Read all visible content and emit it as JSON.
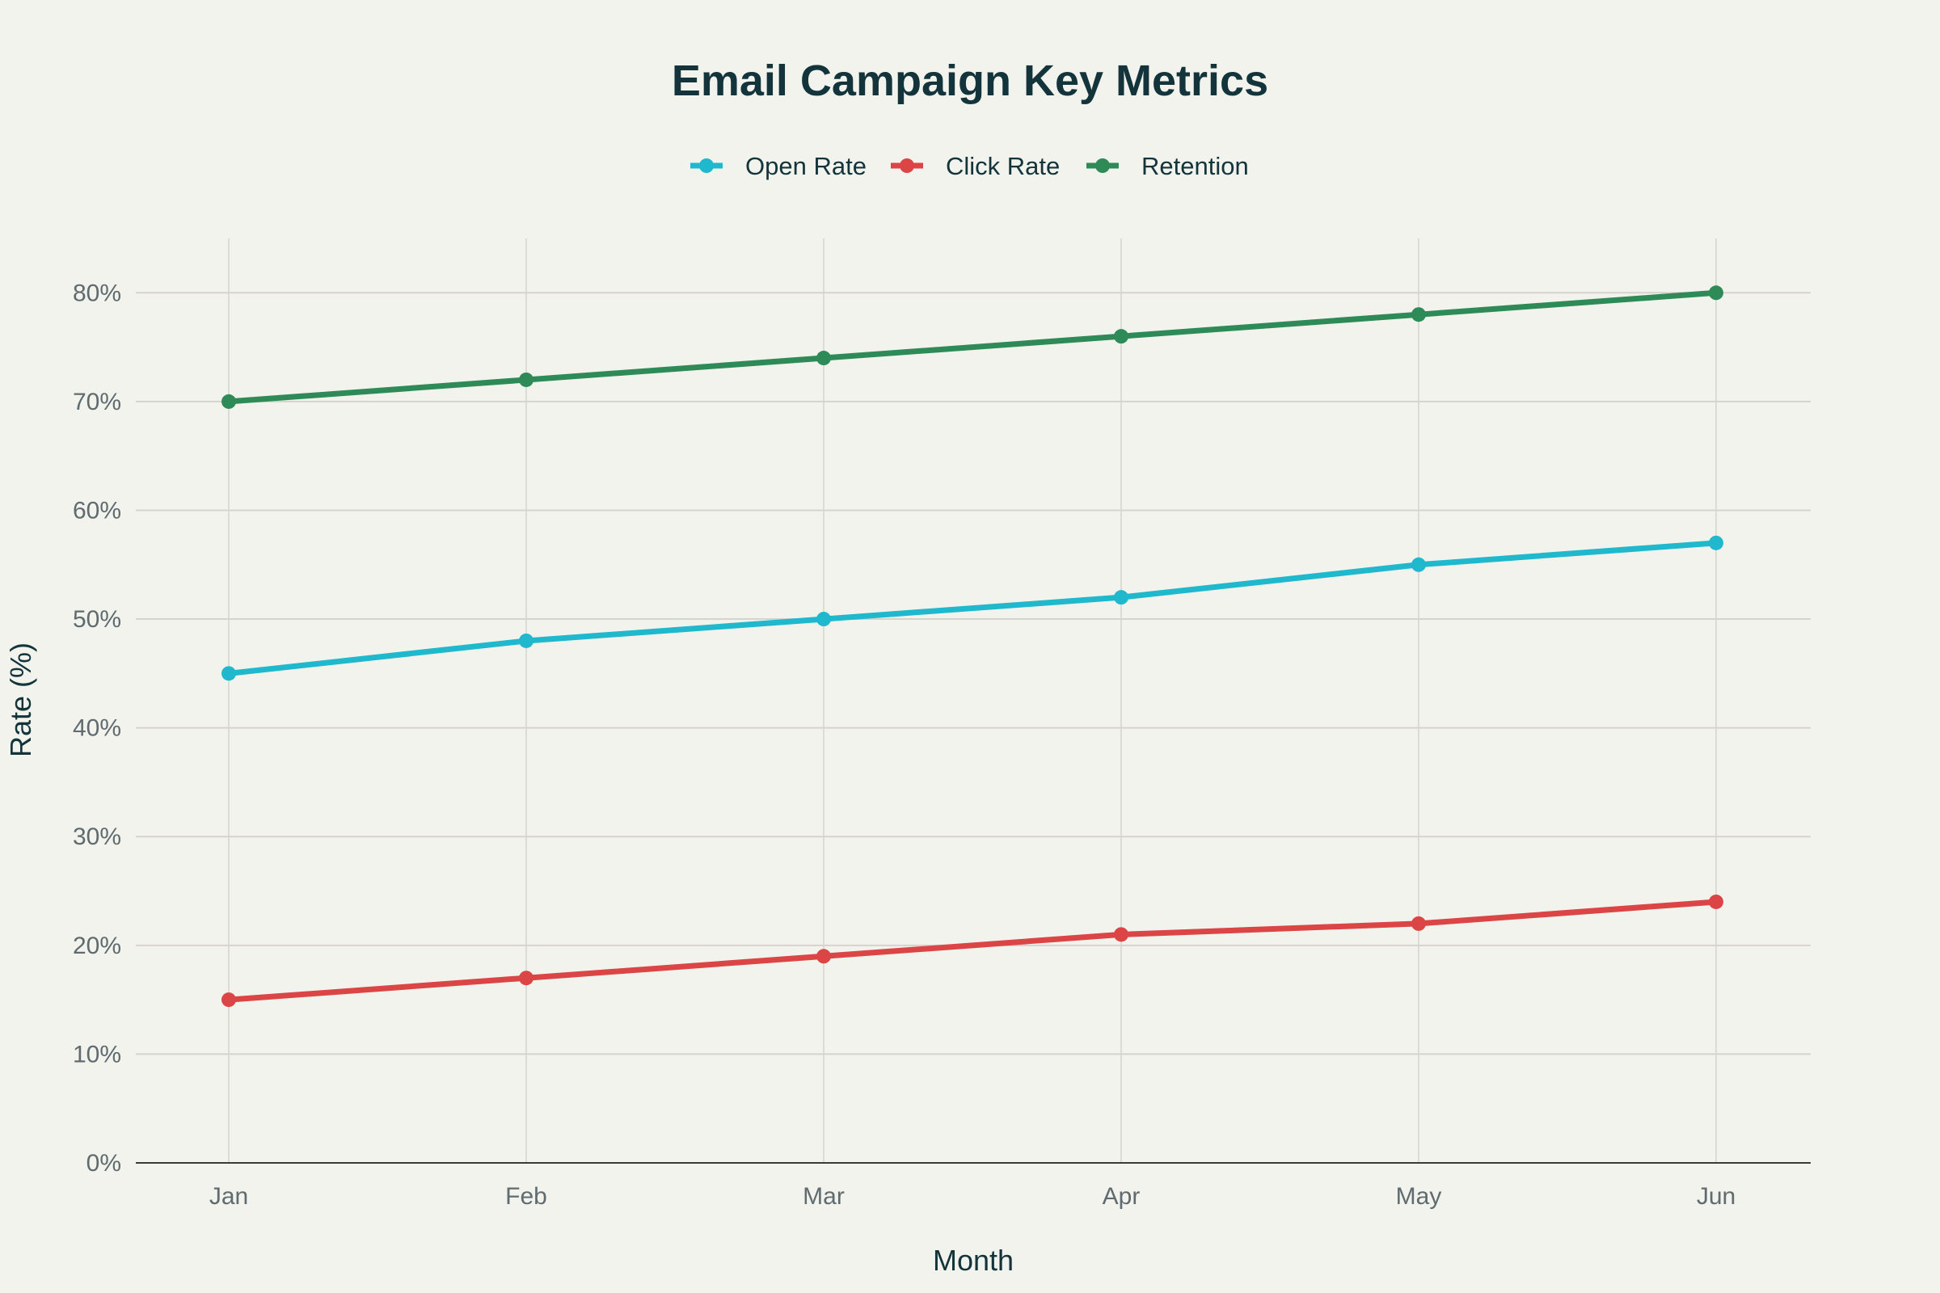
{
  "chart_data": {
    "type": "line",
    "title": "Email Campaign Key Metrics",
    "xlabel": "Month",
    "ylabel": "Rate (%)",
    "categories": [
      "Jan",
      "Feb",
      "Mar",
      "Apr",
      "May",
      "Jun"
    ],
    "ylim": [
      0,
      85
    ],
    "yticks": [
      0,
      10,
      20,
      30,
      40,
      50,
      60,
      70,
      80
    ],
    "ytick_labels": [
      "0%",
      "10%",
      "20%",
      "30%",
      "40%",
      "50%",
      "60%",
      "70%",
      "80%"
    ],
    "grid": true,
    "legend_position": "top-center",
    "series": [
      {
        "name": "Open Rate",
        "color": "#1fb8cd",
        "values": [
          45,
          48,
          50,
          52,
          55,
          57
        ]
      },
      {
        "name": "Click Rate",
        "color": "#db4545",
        "values": [
          15,
          17,
          19,
          21,
          22,
          24
        ]
      },
      {
        "name": "Retention",
        "color": "#2e8b57",
        "values": [
          70,
          72,
          74,
          76,
          78,
          80
        ]
      }
    ]
  }
}
